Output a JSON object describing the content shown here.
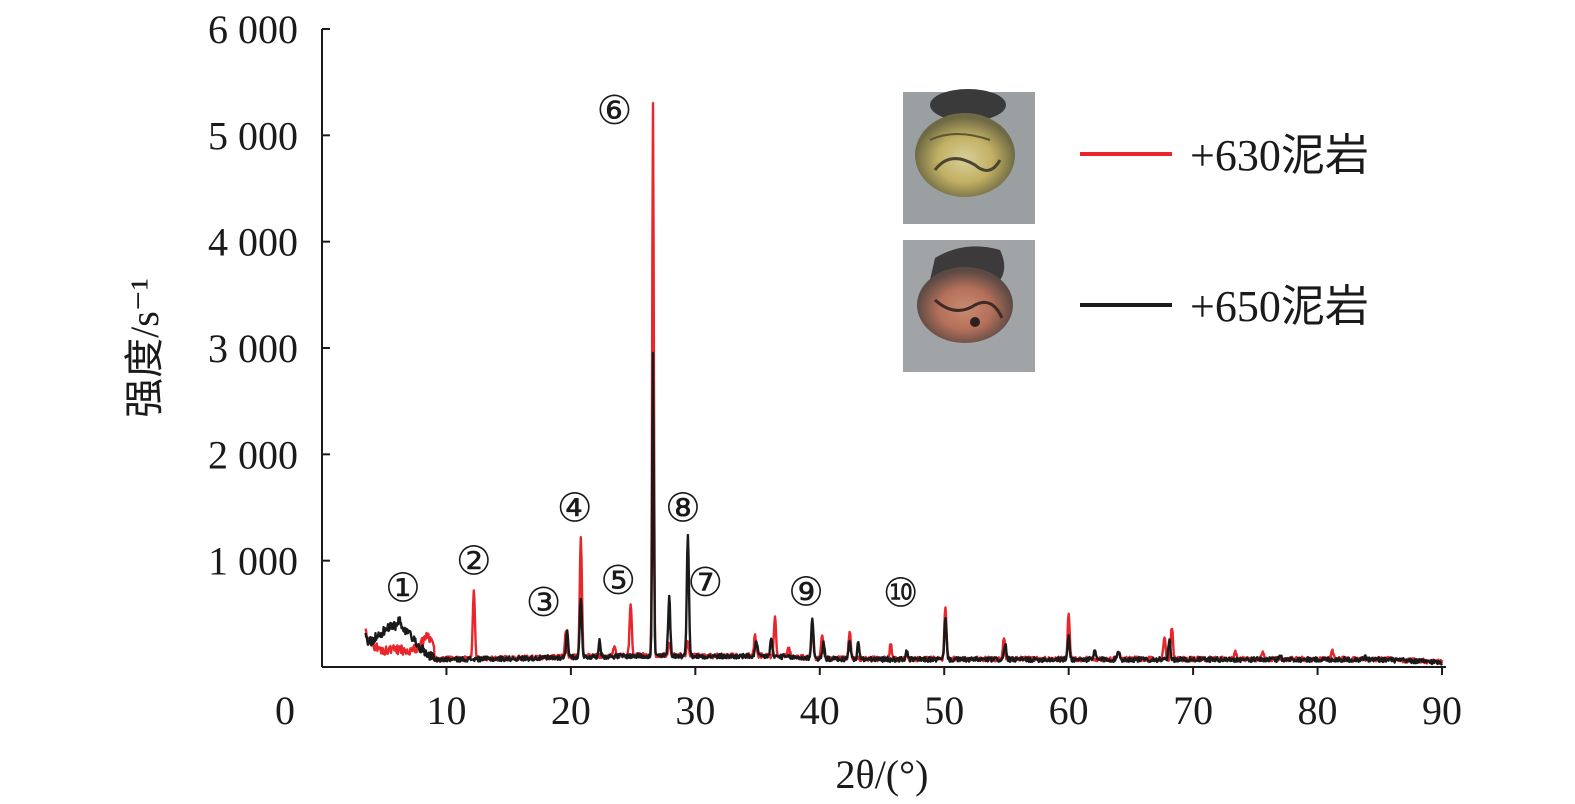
{
  "chart_data": {
    "type": "line",
    "xlabel": "2θ/(°)",
    "ylabel": "强度/s⁻¹",
    "xlim": [
      0,
      90
    ],
    "ylim": [
      0,
      6000
    ],
    "x_ticks": [
      "0",
      "10",
      "20",
      "30",
      "40",
      "50",
      "60",
      "70",
      "80",
      "90"
    ],
    "y_ticks": [
      "1 000",
      "2 000",
      "3 000",
      "4 000",
      "5 000",
      "6 000"
    ],
    "grid": false,
    "legend_position": "top-right",
    "series": [
      {
        "name": "+630泥岩",
        "color": "#e8262c",
        "peaks": [
          [
            3.5,
            380
          ],
          [
            8.5,
            240
          ],
          [
            12.2,
            720
          ],
          [
            19.6,
            320
          ],
          [
            20.8,
            1230
          ],
          [
            23.5,
            200
          ],
          [
            24.8,
            600
          ],
          [
            26.6,
            5320
          ],
          [
            27.9,
            230
          ],
          [
            29.4,
            250
          ],
          [
            34.8,
            290
          ],
          [
            36.4,
            480
          ],
          [
            37.5,
            200
          ],
          [
            39.4,
            360
          ],
          [
            40.2,
            300
          ],
          [
            42.4,
            330
          ],
          [
            45.7,
            220
          ],
          [
            47.0,
            130
          ],
          [
            50.1,
            560
          ],
          [
            54.8,
            290
          ],
          [
            60.0,
            480
          ],
          [
            64.0,
            150
          ],
          [
            67.7,
            290
          ],
          [
            68.3,
            380
          ],
          [
            73.4,
            140
          ],
          [
            75.6,
            130
          ],
          [
            81.2,
            150
          ]
        ]
      },
      {
        "name": "+650泥岩",
        "color": "#1a1a1a",
        "peaks": [
          [
            3.5,
            320
          ],
          [
            6.2,
            460
          ],
          [
            19.7,
            340
          ],
          [
            20.8,
            660
          ],
          [
            22.3,
            240
          ],
          [
            26.6,
            2960
          ],
          [
            27.9,
            660
          ],
          [
            29.4,
            1250
          ],
          [
            34.9,
            240
          ],
          [
            36.1,
            260
          ],
          [
            39.4,
            470
          ],
          [
            40.3,
            220
          ],
          [
            42.4,
            260
          ],
          [
            43.1,
            230
          ],
          [
            47.0,
            150
          ],
          [
            50.1,
            460
          ],
          [
            54.9,
            220
          ],
          [
            60.0,
            280
          ],
          [
            62.1,
            150
          ],
          [
            64.0,
            160
          ],
          [
            68.1,
            240
          ],
          [
            77.0,
            110
          ],
          [
            83.8,
            100
          ]
        ]
      }
    ],
    "annotations": [
      {
        "label": "①",
        "x": 6.5,
        "y": 750
      },
      {
        "label": "②",
        "x": 12.2,
        "y": 1000
      },
      {
        "label": "③",
        "x": 17.8,
        "y": 610
      },
      {
        "label": "④",
        "x": 20.3,
        "y": 1500
      },
      {
        "label": "⑤",
        "x": 23.8,
        "y": 820
      },
      {
        "label": "⑥",
        "x": 23.5,
        "y": 5240
      },
      {
        "label": "⑦",
        "x": 30.8,
        "y": 800
      },
      {
        "label": "⑧",
        "x": 29.0,
        "y": 1500
      },
      {
        "label": "⑨",
        "x": 38.9,
        "y": 710
      },
      {
        "label": "⑩",
        "x": 46.5,
        "y": 700
      }
    ]
  }
}
